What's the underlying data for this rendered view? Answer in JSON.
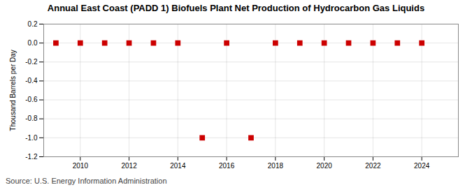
{
  "chart_data": {
    "type": "scatter",
    "title": "Annual East Coast (PADD 1) Biofuels Plant Net Production of Hydrocarbon Gas Liquids",
    "ylabel": "Thousand Barrels per Day",
    "annotations": [
      "Source: U.S. Energy Information Administration"
    ],
    "x": [
      2009,
      2010,
      2011,
      2012,
      2013,
      2014,
      2015,
      2016,
      2017,
      2018,
      2019,
      2020,
      2021,
      2022,
      2023,
      2024
    ],
    "values": [
      0.0,
      0.0,
      0.0,
      0.0,
      0.0,
      0.0,
      -1.0,
      0.0,
      -1.0,
      0.0,
      0.0,
      0.0,
      0.0,
      0.0,
      0.0,
      0.0
    ],
    "color": "#cc0000",
    "marker": "square",
    "xlim": [
      2008.5,
      2025.5
    ],
    "xticks": [
      2010,
      2012,
      2014,
      2016,
      2018,
      2020,
      2022,
      2024
    ],
    "ylim": [
      -1.2,
      0.2
    ],
    "yticks": [
      0.2,
      {
        "value": 0.0,
        "label": "0.0"
      },
      -0.2,
      -0.4,
      -0.6,
      -0.8,
      {
        "value": -1.0,
        "label": "-1.0"
      },
      -1.2
    ],
    "grid": true
  }
}
